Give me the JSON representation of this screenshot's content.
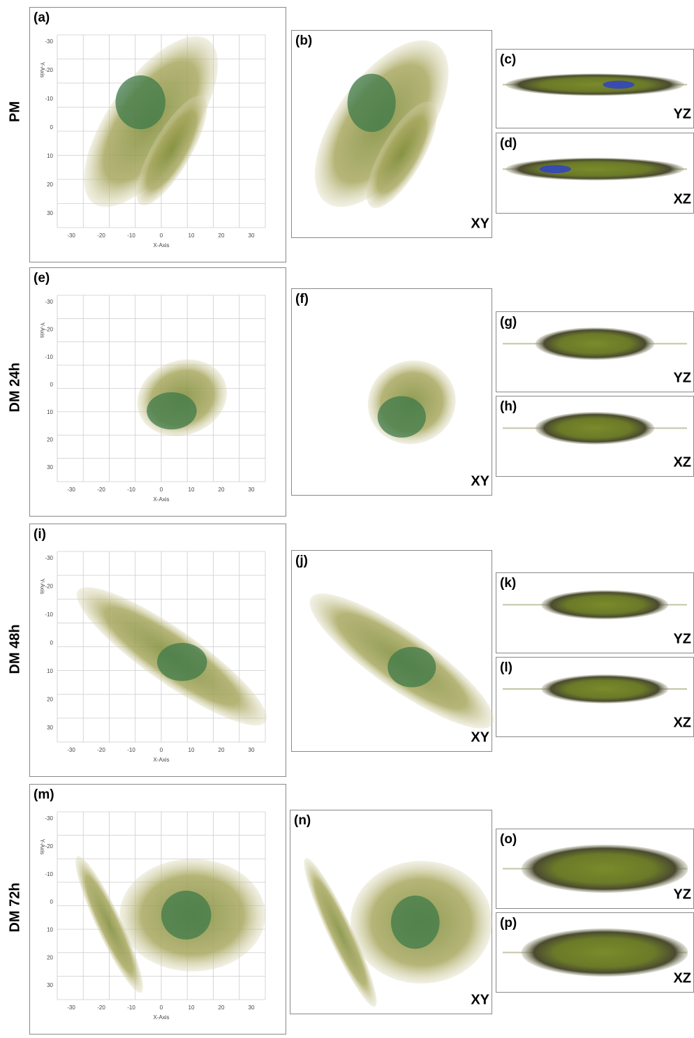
{
  "rows": [
    {
      "label": "PM",
      "panels": [
        {
          "tag": "(a)",
          "x_axis": "X-Axis",
          "y_axis": "Y-Axis",
          "x_ticks": [
            "-30",
            "-20",
            "-10",
            "0",
            "10",
            "20",
            "30"
          ],
          "y_ticks": [
            "-30",
            "-20",
            "-10",
            "0",
            "10",
            "20",
            "30"
          ]
        },
        {
          "tag": "(b)",
          "view": "XY"
        },
        {
          "tag": "(c)",
          "view": "YZ"
        },
        {
          "tag": "(d)",
          "view": "XZ"
        }
      ]
    },
    {
      "label": "DM 24h",
      "panels": [
        {
          "tag": "(e)",
          "x_axis": "X-Axis",
          "y_axis": "Y-Axis",
          "x_ticks": [
            "-30",
            "-20",
            "-10",
            "0",
            "10",
            "20",
            "30"
          ],
          "y_ticks": [
            "-30",
            "-20",
            "-10",
            "0",
            "10",
            "20",
            "30"
          ]
        },
        {
          "tag": "(f)",
          "view": "XY"
        },
        {
          "tag": "(g)",
          "view": "YZ"
        },
        {
          "tag": "(h)",
          "view": "XZ"
        }
      ]
    },
    {
      "label": "DM 48h",
      "panels": [
        {
          "tag": "(i)",
          "x_axis": "X-Axis",
          "y_axis": "Y-Axis",
          "x_ticks": [
            "-30",
            "-20",
            "-10",
            "0",
            "10",
            "20",
            "30"
          ],
          "y_ticks": [
            "-30",
            "-20",
            "-10",
            "0",
            "10",
            "20",
            "30"
          ]
        },
        {
          "tag": "(j)",
          "view": "XY"
        },
        {
          "tag": "(k)",
          "view": "YZ"
        },
        {
          "tag": "(l)",
          "view": "XZ"
        }
      ]
    },
    {
      "label": "DM 72h",
      "panels": [
        {
          "tag": "(m)",
          "x_axis": "X-Axis",
          "y_axis": "Y-Axis",
          "x_ticks": [
            "-30",
            "-20",
            "-10",
            "0",
            "10",
            "20",
            "30"
          ],
          "y_ticks": [
            "-30",
            "-20",
            "-10",
            "0",
            "10",
            "20",
            "30"
          ]
        },
        {
          "tag": "(n)",
          "view": "XY"
        },
        {
          "tag": "(o)",
          "view": "YZ"
        },
        {
          "tag": "(p)",
          "view": "XZ"
        }
      ]
    }
  ]
}
